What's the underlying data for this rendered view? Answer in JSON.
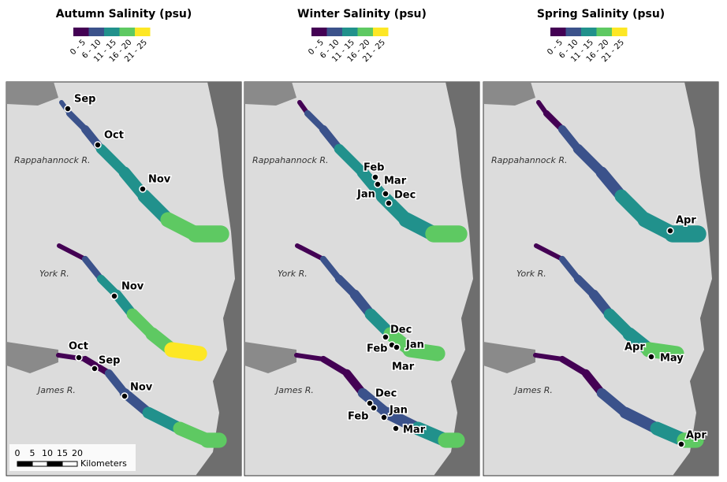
{
  "legend": {
    "labels": [
      "0 - 5",
      "6 - 10",
      "11 - 15",
      "16 - 20",
      "21 - 25"
    ],
    "colors": [
      "#440154",
      "#3b528b",
      "#21918c",
      "#5ec962",
      "#fde725"
    ]
  },
  "panels": [
    {
      "title": "Autumn Salinity (psu)",
      "rivers": [
        "Rappahannock R.",
        "York R.",
        "James R."
      ],
      "sites": [
        "Sep",
        "Oct",
        "Nov",
        "Nov",
        "Oct",
        "Sep",
        "Nov"
      ]
    },
    {
      "title": "Winter Salinity (psu)",
      "rivers": [
        "Rappahannock R.",
        "York R.",
        "James R."
      ],
      "sites": [
        "Feb",
        "Mar",
        "Jan",
        "Dec",
        "Dec",
        "Feb",
        "Jan",
        "Mar",
        "Dec",
        "Feb",
        "Jan",
        "Mar"
      ]
    },
    {
      "title": "Spring Salinity (psu)",
      "rivers": [
        "Rappahannock R.",
        "York R.",
        "James R."
      ],
      "sites": [
        "Apr",
        "Apr",
        "May",
        "Apr"
      ]
    }
  ],
  "scale_bar": {
    "ticks": [
      0,
      5,
      10,
      15,
      20
    ],
    "unit": "Kilometers"
  }
}
